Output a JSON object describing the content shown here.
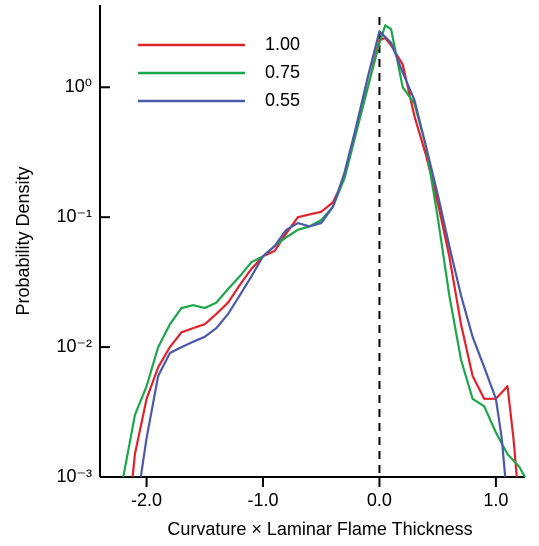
{
  "chart_data": {
    "type": "line",
    "log_y": true,
    "x_label": "Curvature × Laminar Flame Thickness",
    "y_label": "Probability Density",
    "xlim": [
      -2.4,
      1.25
    ],
    "ylim": [
      0.001,
      4.3
    ],
    "xticks": [
      {
        "value": -2,
        "label": "-2.0"
      },
      {
        "value": -1,
        "label": "-1.0"
      },
      {
        "value": 0,
        "label": "0.0"
      },
      {
        "value": 1,
        "label": "1.0"
      }
    ],
    "yticks": [
      {
        "value": 0.001,
        "label": "10⁻³"
      },
      {
        "value": 0.01,
        "label": "10⁻²"
      },
      {
        "value": 0.1,
        "label": "10⁻¹"
      },
      {
        "value": 1,
        "label": "10⁰"
      }
    ],
    "reference_line_x": 0,
    "legend": "upper left",
    "series": [
      {
        "name": "1.00",
        "color": "#e0232b",
        "x": [
          -2.12,
          -2.1,
          -2.0,
          -1.9,
          -1.8,
          -1.7,
          -1.6,
          -1.5,
          -1.4,
          -1.3,
          -1.2,
          -1.1,
          -1.0,
          -0.9,
          -0.8,
          -0.7,
          -0.6,
          -0.5,
          -0.4,
          -0.3,
          -0.2,
          -0.1,
          0.0,
          0.05,
          0.1,
          0.2,
          0.3,
          0.4,
          0.5,
          0.6,
          0.7,
          0.8,
          0.9,
          1.0,
          1.1,
          1.15,
          1.18
        ],
        "values": [
          0.001,
          0.0015,
          0.004,
          0.007,
          0.01,
          0.013,
          0.014,
          0.015,
          0.018,
          0.022,
          0.03,
          0.04,
          0.05,
          0.055,
          0.075,
          0.1,
          0.105,
          0.11,
          0.13,
          0.2,
          0.45,
          1.0,
          2.3,
          2.4,
          2.1,
          1.5,
          0.6,
          0.3,
          0.13,
          0.05,
          0.015,
          0.006,
          0.004,
          0.004,
          0.005,
          0.002,
          0.001
        ]
      },
      {
        "name": "0.75",
        "color": "#1ea64a",
        "x": [
          -2.2,
          -2.1,
          -2.0,
          -1.9,
          -1.8,
          -1.7,
          -1.6,
          -1.5,
          -1.4,
          -1.3,
          -1.2,
          -1.1,
          -1.0,
          -0.9,
          -0.8,
          -0.7,
          -0.6,
          -0.5,
          -0.4,
          -0.3,
          -0.2,
          -0.1,
          0.0,
          0.05,
          0.1,
          0.2,
          0.3,
          0.4,
          0.5,
          0.6,
          0.7,
          0.8,
          0.9,
          1.0,
          1.1,
          1.2,
          1.25
        ],
        "values": [
          0.001,
          0.003,
          0.005,
          0.01,
          0.015,
          0.02,
          0.021,
          0.02,
          0.022,
          0.028,
          0.035,
          0.045,
          0.05,
          0.06,
          0.07,
          0.08,
          0.085,
          0.095,
          0.12,
          0.2,
          0.45,
          1.0,
          2.2,
          3.0,
          2.8,
          1.0,
          0.75,
          0.35,
          0.1,
          0.025,
          0.008,
          0.004,
          0.0035,
          0.0022,
          0.0015,
          0.0012,
          0.001
        ]
      },
      {
        "name": "0.55",
        "color": "#4a5aa8",
        "x": [
          -2.05,
          -2.0,
          -1.9,
          -1.8,
          -1.7,
          -1.6,
          -1.5,
          -1.4,
          -1.3,
          -1.2,
          -1.1,
          -1.0,
          -0.9,
          -0.8,
          -0.7,
          -0.6,
          -0.5,
          -0.4,
          -0.3,
          -0.2,
          -0.1,
          0.0,
          0.1,
          0.2,
          0.3,
          0.4,
          0.5,
          0.6,
          0.7,
          0.8,
          0.9,
          1.0,
          1.05,
          1.08
        ],
        "values": [
          0.001,
          0.002,
          0.006,
          0.009,
          0.01,
          0.011,
          0.012,
          0.014,
          0.018,
          0.025,
          0.035,
          0.05,
          0.06,
          0.08,
          0.09,
          0.085,
          0.09,
          0.12,
          0.22,
          0.5,
          1.2,
          2.7,
          2.2,
          1.3,
          0.8,
          0.35,
          0.15,
          0.06,
          0.025,
          0.012,
          0.007,
          0.004,
          0.002,
          0.001
        ]
      }
    ]
  }
}
